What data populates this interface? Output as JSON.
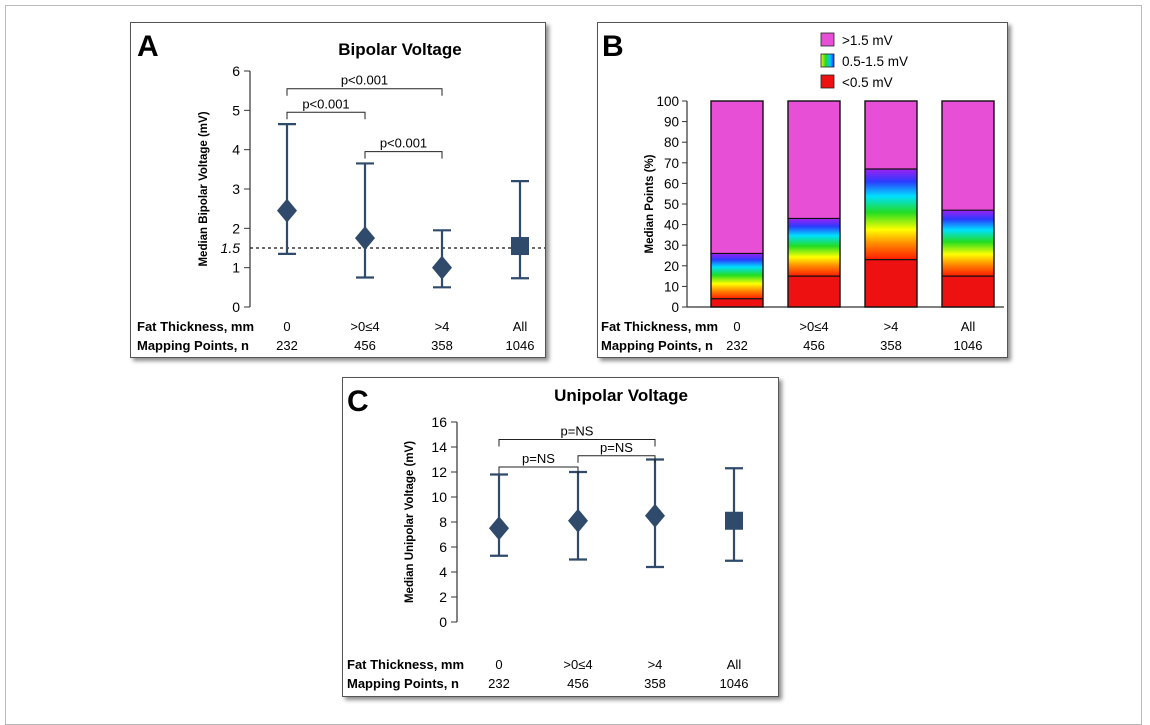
{
  "colors": {
    "series": "#2f4a6b",
    "pink": "#e64fd6",
    "red": "#ee1111",
    "axis": "#333333"
  },
  "chart_data": [
    {
      "panel_letter": "A",
      "type": "scatter",
      "title": "Bipolar Voltage",
      "ylabel": "Median Bipolar Voltage (mV)",
      "ylim": [
        0,
        6
      ],
      "yticks": [
        "0",
        "1",
        "2",
        "3",
        "4",
        "5",
        "6"
      ],
      "threshold": {
        "value": 1.5,
        "label": "1.5"
      },
      "row_labels": [
        "Fat Thickness, mm",
        "Mapping Points, n"
      ],
      "categories": [
        "0",
        ">0≤4",
        ">4",
        "All"
      ],
      "counts": [
        "232",
        "456",
        "358",
        "1046"
      ],
      "points": [
        {
          "median": 2.45,
          "upper": 4.65,
          "lower": 1.35,
          "marker": "diamond"
        },
        {
          "median": 1.75,
          "upper": 3.65,
          "lower": 0.75,
          "marker": "diamond"
        },
        {
          "median": 1.0,
          "upper": 1.95,
          "lower": 0.5,
          "marker": "diamond"
        },
        {
          "median": 1.55,
          "upper": 3.2,
          "lower": 0.73,
          "marker": "square"
        }
      ],
      "brackets": [
        {
          "from": 0,
          "to": 2,
          "level": 5.55,
          "label": "p<0.001"
        },
        {
          "from": 0,
          "to": 1,
          "level": 4.95,
          "label": "p<0.001"
        },
        {
          "from": 1,
          "to": 2,
          "level": 3.95,
          "label": "p<0.001"
        }
      ]
    },
    {
      "panel_letter": "B",
      "type": "bar",
      "stacked": true,
      "ylabel": "Median Points (%)",
      "ylim": [
        0,
        100
      ],
      "yticks": [
        "0",
        "10",
        "20",
        "30",
        "40",
        "50",
        "60",
        "70",
        "80",
        "90",
        "100"
      ],
      "legend": [
        ">1.5 mV",
        "0.5-1.5 mV",
        "<0.5 mV"
      ],
      "row_labels": [
        "Fat Thickness, mm",
        "Mapping Points, n"
      ],
      "categories": [
        "0",
        ">0≤4",
        ">4",
        "All"
      ],
      "counts": [
        "232",
        "456",
        "358",
        "1046"
      ],
      "series": [
        {
          "name": "<0.5 mV",
          "values": [
            4,
            15,
            23,
            15
          ]
        },
        {
          "name": "0.5-1.5 mV",
          "values": [
            22,
            28,
            44,
            32
          ]
        },
        {
          "name": ">1.5 mV",
          "values": [
            74,
            57,
            33,
            53
          ]
        }
      ]
    },
    {
      "panel_letter": "C",
      "type": "scatter",
      "title": "Unipolar Voltage",
      "ylabel": "Median Unipolar Voltage (mV)",
      "ylim": [
        0,
        16
      ],
      "yticks": [
        "0",
        "2",
        "4",
        "6",
        "8",
        "10",
        "12",
        "14",
        "16"
      ],
      "row_labels": [
        "Fat Thickness, mm",
        "Mapping Points, n"
      ],
      "categories": [
        "0",
        ">0≤4",
        ">4",
        "All"
      ],
      "counts": [
        "232",
        "456",
        "358",
        "1046"
      ],
      "points": [
        {
          "median": 7.5,
          "upper": 11.8,
          "lower": 5.3,
          "marker": "diamond"
        },
        {
          "median": 8.1,
          "upper": 12.0,
          "lower": 5.0,
          "marker": "diamond"
        },
        {
          "median": 8.5,
          "upper": 13.0,
          "lower": 4.4,
          "marker": "diamond"
        },
        {
          "median": 8.1,
          "upper": 12.3,
          "lower": 4.9,
          "marker": "square"
        }
      ],
      "brackets": [
        {
          "from": 0,
          "to": 2,
          "level": 14.6,
          "label": "p=NS"
        },
        {
          "from": 0,
          "to": 1,
          "level": 12.4,
          "label": "p=NS"
        },
        {
          "from": 1,
          "to": 2,
          "level": 13.3,
          "label": "p=NS"
        }
      ]
    }
  ]
}
